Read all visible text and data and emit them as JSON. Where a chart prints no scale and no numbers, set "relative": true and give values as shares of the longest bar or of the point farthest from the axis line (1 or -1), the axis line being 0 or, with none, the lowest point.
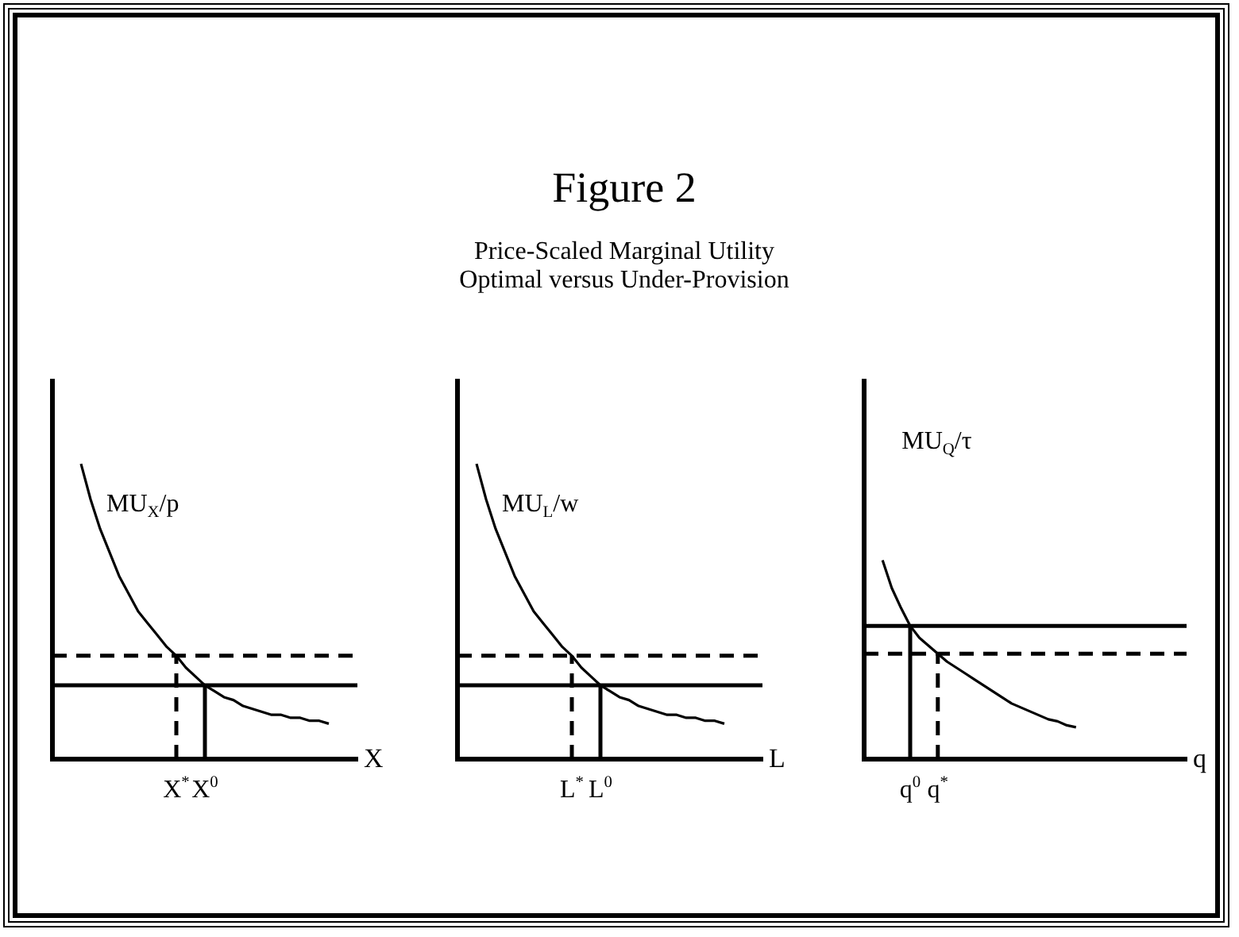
{
  "chart_data": [
    {
      "type": "line",
      "relative": true,
      "xlabel": "X",
      "marker": "none",
      "line_style": "solid",
      "legend": false,
      "grid": false,
      "categories": [
        null,
        null,
        null,
        null,
        null,
        null,
        null,
        null,
        null,
        null,
        null,
        null,
        null,
        "X$^{*}$",
        null,
        null,
        "X$^{0}$",
        null,
        null,
        null,
        null,
        null,
        null,
        null,
        null,
        null,
        null,
        null,
        null,
        null,
        null,
        null,
        null
      ],
      "series": [
        {
          "name": "MU$_{X}$/p",
          "color": "#000000",
          "values": [
            null,
            null,
            null,
            1,
            0.88,
            0.78,
            0.7,
            0.62,
            0.56,
            0.5,
            0.46,
            0.42,
            0.38,
            0.35,
            0.31,
            0.28,
            0.25,
            0.23,
            0.21,
            0.2,
            0.18,
            0.17,
            0.16,
            0.15,
            0.15,
            0.14,
            0.14,
            0.13,
            0.13,
            0.12,
            null,
            null,
            null
          ]
        }
      ],
      "ref_lines": [
        {
          "axis": "y",
          "value": 0.35,
          "line_style": "dashed",
          "color": "#000000"
        },
        {
          "axis": "y",
          "value": 0.25,
          "line_style": "solid",
          "color": "#000000"
        },
        {
          "axis": "x",
          "value": "X$^{*}$",
          "line_style": "dashed",
          "color": "#000000"
        },
        {
          "axis": "x",
          "value": "X$^{0}$",
          "line_style": "solid",
          "color": "#000000"
        }
      ]
    },
    {
      "type": "line",
      "title": "Figure 2",
      "subtitle": "Price-Scaled Marginal Utility\nOptimal versus Under-Provision",
      "relative": true,
      "xlabel": "L",
      "marker": "none",
      "line_style": "solid",
      "legend": false,
      "grid": false,
      "categories": [
        null,
        null,
        null,
        null,
        null,
        null,
        null,
        null,
        null,
        null,
        null,
        null,
        "L$^{*}$",
        null,
        null,
        "L$^{0}$",
        null,
        null,
        null,
        null,
        null,
        null,
        null,
        null,
        null,
        null,
        null,
        null,
        null,
        null,
        null,
        null,
        null
      ],
      "series": [
        {
          "name": "MU$_{L}$/w",
          "color": "#000000",
          "values": [
            null,
            null,
            1,
            0.88,
            0.78,
            0.7,
            0.62,
            0.56,
            0.5,
            0.46,
            0.42,
            0.38,
            0.35,
            0.31,
            0.28,
            0.25,
            0.23,
            0.21,
            0.2,
            0.18,
            0.17,
            0.16,
            0.15,
            0.15,
            0.14,
            0.14,
            0.13,
            0.13,
            0.12,
            null,
            null,
            null,
            null
          ]
        }
      ],
      "ref_lines": [
        {
          "axis": "y",
          "value": 0.35,
          "line_style": "dashed",
          "color": "#000000"
        },
        {
          "axis": "y",
          "value": 0.25,
          "line_style": "solid",
          "color": "#000000"
        },
        {
          "axis": "x",
          "value": "L$^{*}$",
          "line_style": "dashed",
          "color": "#000000"
        },
        {
          "axis": "x",
          "value": "L$^{0}$",
          "line_style": "solid",
          "color": "#000000"
        }
      ]
    },
    {
      "type": "line",
      "relative": true,
      "xlabel": "q",
      "marker": "none",
      "line_style": "solid",
      "legend": false,
      "grid": false,
      "categories": [
        null,
        null,
        null,
        null,
        null,
        "q$^{0}$",
        null,
        null,
        "q$^{*}$",
        null,
        null,
        null,
        null,
        null,
        null,
        null,
        null,
        null,
        null,
        null,
        null,
        null,
        null,
        null,
        null,
        null,
        null,
        null,
        null,
        null,
        null,
        null,
        null,
        null,
        null,
        null
      ],
      "series": [
        {
          "name": "MU$_{Q}$/τ",
          "color": "#000000",
          "values": [
            null,
            null,
            1,
            0.86,
            0.76,
            0.67,
            0.61,
            0.57,
            0.53,
            0.49,
            0.46,
            0.43,
            0.4,
            0.37,
            0.34,
            0.31,
            0.28,
            0.26,
            0.24,
            0.22,
            0.2,
            0.19,
            0.17,
            0.16,
            null,
            null,
            null,
            null,
            null,
            null,
            null,
            null,
            null,
            null,
            null,
            null
          ]
        }
      ],
      "ref_lines": [
        {
          "axis": "y",
          "value": 0.67,
          "line_style": "solid",
          "color": "#000000"
        },
        {
          "axis": "y",
          "value": 0.53,
          "line_style": "dashed",
          "color": "#000000"
        },
        {
          "axis": "x",
          "value": "q$^{0}$",
          "line_style": "solid",
          "color": "#000000"
        },
        {
          "axis": "x",
          "value": "q$^{*}$",
          "line_style": "dashed",
          "color": "#000000"
        }
      ]
    }
  ]
}
